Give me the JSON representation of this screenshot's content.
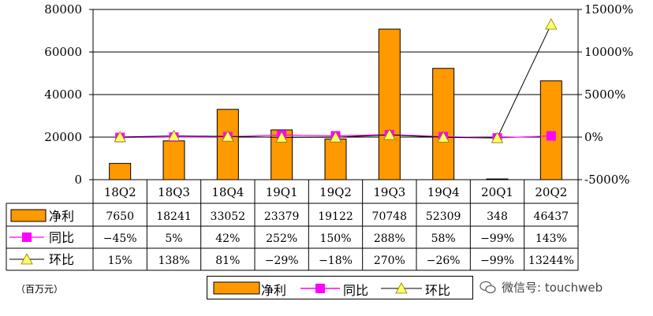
{
  "chart_data": {
    "type": "bar",
    "categories": [
      "18Q2",
      "18Q3",
      "18Q4",
      "19Q1",
      "19Q2",
      "19Q3",
      "19Q4",
      "20Q1",
      "20Q2"
    ],
    "series": [
      {
        "name": "净利",
        "type": "bar",
        "axis": "left",
        "values": [
          7650,
          18241,
          33052,
          23379,
          19122,
          70748,
          52309,
          348,
          46437
        ],
        "display": [
          "7650",
          "18241",
          "33052",
          "23379",
          "19122",
          "70748",
          "52309",
          "348",
          "46437"
        ]
      },
      {
        "name": "同比",
        "type": "line",
        "axis": "right",
        "values": [
          -45,
          5,
          42,
          252,
          150,
          288,
          58,
          -99,
          143
        ],
        "display": [
          "-45%",
          "5%",
          "42%",
          "252%",
          "150%",
          "288%",
          "58%",
          "-99%",
          "143%"
        ]
      },
      {
        "name": "环比",
        "type": "line",
        "axis": "right",
        "values": [
          15,
          138,
          81,
          -29,
          -18,
          270,
          -26,
          -99,
          13244
        ],
        "display": [
          "15%",
          "138%",
          "81%",
          "-29%",
          "-18%",
          "270%",
          "-26%",
          "-99%",
          "13244%"
        ]
      }
    ],
    "ylim": [
      0,
      80000
    ],
    "yticks": [
      0,
      20000,
      40000,
      60000,
      80000
    ],
    "y2lim": [
      -5000,
      15000
    ],
    "y2ticks": [
      "-5000%",
      "0%",
      "5000%",
      "10000%",
      "15000%"
    ],
    "y2values": [
      -5000,
      0,
      5000,
      10000,
      15000
    ],
    "grid": true,
    "unit": "（百万元）",
    "legend": {
      "placement": "bottom",
      "entries": [
        "净利",
        "同比",
        "环比"
      ]
    },
    "colors": {
      "bar": "#FF9900",
      "yoy": "#FF00FF",
      "qoq": "#FFFF66",
      "qoq_line": "#000000"
    }
  },
  "watermark": {
    "text": "微信号: touchweb",
    "icon": "wechat-icon"
  }
}
